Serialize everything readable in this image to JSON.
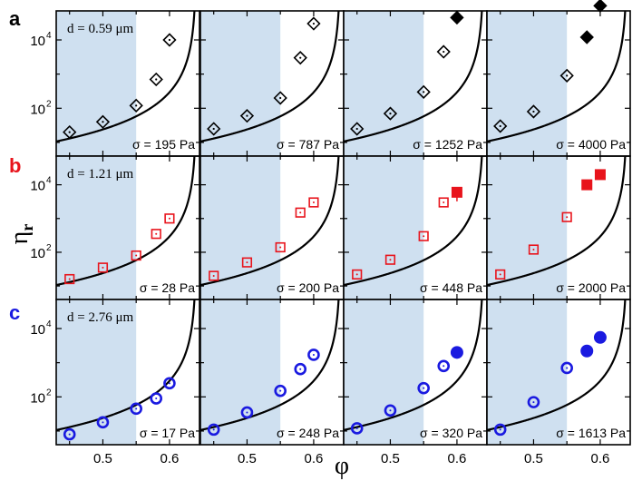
{
  "colors": {
    "row_a": "#000000",
    "row_b": "#e8141c",
    "row_c": "#1a1ae0",
    "shade": "#cfe0f0"
  },
  "axes": {
    "xlabel": "φ",
    "ylabel_main": "η",
    "ylabel_sub": "r",
    "x_ticks": [
      "0.5",
      "0.6"
    ],
    "y_tick_base": "10",
    "y_tick_exponents": [
      "2",
      "4"
    ]
  },
  "chart_data": {
    "type": "scatter",
    "xlim": [
      0.43,
      0.645
    ],
    "ylim_log10": [
      0.6,
      4.85
    ],
    "shaded_region": [
      0.43,
      0.55
    ],
    "fit_curve": "eta_r = 1.15 * (1 - phi/0.64)^-2",
    "rows": [
      {
        "letter": "a",
        "d_label": "d = 0.59 μm",
        "color": "#000000",
        "marker_open": "diamond",
        "marker_filled": "diamond",
        "panels": [
          {
            "sigma": "σ = 195 Pa",
            "open": [
              [
                0.45,
                20
              ],
              [
                0.5,
                40
              ],
              [
                0.55,
                120
              ],
              [
                0.58,
                700
              ],
              [
                0.6,
                10000
              ]
            ],
            "filled": []
          },
          {
            "sigma": "σ = 787 Pa",
            "open": [
              [
                0.45,
                25
              ],
              [
                0.5,
                60
              ],
              [
                0.55,
                200
              ],
              [
                0.58,
                3000
              ],
              [
                0.6,
                30000
              ]
            ],
            "filled": []
          },
          {
            "sigma": "σ = 1252 Pa",
            "open": [
              [
                0.45,
                25
              ],
              [
                0.5,
                70
              ],
              [
                0.55,
                300
              ],
              [
                0.58,
                4500
              ]
            ],
            "filled": [
              [
                0.6,
                45000
              ]
            ]
          },
          {
            "sigma": "σ = 4000 Pa",
            "open": [
              [
                0.45,
                30
              ],
              [
                0.5,
                80
              ],
              [
                0.55,
                900
              ]
            ],
            "filled": [
              [
                0.58,
                12000
              ],
              [
                0.6,
                100000
              ]
            ]
          }
        ]
      },
      {
        "letter": "b",
        "d_label": "d = 1.21 μm",
        "color": "#e8141c",
        "marker_open": "square",
        "marker_filled": "square",
        "panels": [
          {
            "sigma": "σ = 28 Pa",
            "open": [
              [
                0.45,
                16
              ],
              [
                0.5,
                35
              ],
              [
                0.55,
                80
              ],
              [
                0.58,
                350
              ],
              [
                0.6,
                1000
              ]
            ],
            "filled": []
          },
          {
            "sigma": "σ = 200 Pa",
            "open": [
              [
                0.45,
                20
              ],
              [
                0.5,
                50
              ],
              [
                0.55,
                140
              ],
              [
                0.58,
                1500
              ],
              [
                0.6,
                3000
              ]
            ],
            "filled": []
          },
          {
            "sigma": "σ = 448 Pa",
            "open": [
              [
                0.45,
                22
              ],
              [
                0.5,
                60
              ],
              [
                0.55,
                300
              ],
              [
                0.58,
                3000
              ]
            ],
            "filled": [
              [
                0.6,
                6000
              ]
            ]
          },
          {
            "sigma": "σ = 2000 Pa",
            "open": [
              [
                0.45,
                22
              ],
              [
                0.5,
                120
              ],
              [
                0.55,
                1100
              ]
            ],
            "filled": [
              [
                0.58,
                10000
              ],
              [
                0.6,
                20000
              ]
            ]
          }
        ]
      },
      {
        "letter": "c",
        "d_label": "d = 2.76 μm",
        "color": "#1a1ae0",
        "marker_open": "circle",
        "marker_filled": "circle",
        "panels": [
          {
            "sigma": "σ = 17 Pa",
            "open": [
              [
                0.45,
                8
              ],
              [
                0.5,
                18
              ],
              [
                0.55,
                45
              ],
              [
                0.58,
                90
              ],
              [
                0.6,
                250
              ]
            ],
            "filled": []
          },
          {
            "sigma": "σ = 248 Pa",
            "open": [
              [
                0.45,
                11
              ],
              [
                0.5,
                35
              ],
              [
                0.55,
                150
              ],
              [
                0.58,
                650
              ],
              [
                0.6,
                1700
              ]
            ],
            "filled": []
          },
          {
            "sigma": "σ = 320 Pa",
            "open": [
              [
                0.45,
                12
              ],
              [
                0.5,
                40
              ],
              [
                0.55,
                180
              ],
              [
                0.58,
                800
              ]
            ],
            "filled": [
              [
                0.6,
                2000
              ]
            ]
          },
          {
            "sigma": "σ = 1613 Pa",
            "open": [
              [
                0.45,
                11
              ],
              [
                0.5,
                70
              ],
              [
                0.55,
                700
              ]
            ],
            "filled": [
              [
                0.58,
                2200
              ],
              [
                0.6,
                5500
              ]
            ]
          }
        ]
      }
    ]
  }
}
